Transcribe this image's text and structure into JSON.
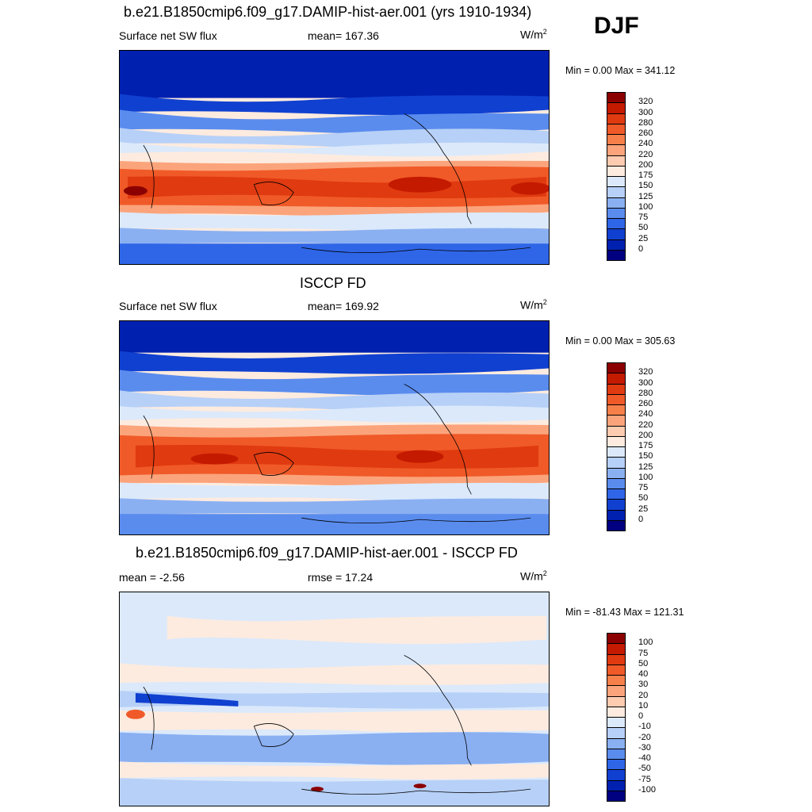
{
  "season": "DJF",
  "panels": [
    {
      "title": "b.e21.B1850cmip6.f09_g17.DAMIP-hist-aer.001 (yrs 1910-1934)",
      "left_label": "Surface net SW flux",
      "center_label": "mean= 167.36",
      "units_main": "W/m",
      "units_sup": "2",
      "minmax": "Min =   0.00 Max = 341.12",
      "kind": "field"
    },
    {
      "title": "ISCCP FD",
      "left_label": "Surface net SW flux",
      "center_label": "mean= 169.92",
      "units_main": "W/m",
      "units_sup": "2",
      "minmax": "Min =   0.00 Max = 305.63",
      "kind": "field"
    },
    {
      "title": "b.e21.B1850cmip6.f09_g17.DAMIP-hist-aer.001 - ISCCP FD",
      "left_label": "mean =  -2.56",
      "center_label": "rmse =  17.24",
      "units_main": "W/m",
      "units_sup": "2",
      "minmax": "Min = -81.43 Max = 121.31",
      "kind": "diff"
    }
  ],
  "colorbars": {
    "field": {
      "labels": [
        "320",
        "300",
        "280",
        "260",
        "240",
        "220",
        "200",
        "175",
        "150",
        "125",
        "100",
        "75",
        "50",
        "25",
        "0"
      ],
      "colors": [
        "#8b0000",
        "#c41a00",
        "#e03a10",
        "#f05a28",
        "#f7804a",
        "#fba47c",
        "#fdcbb0",
        "#fdebdf",
        "#dbe9fb",
        "#b7d0f7",
        "#8ab0f2",
        "#5a8cee",
        "#2f66e8",
        "#1040d0",
        "#0020b0",
        "#000080"
      ]
    },
    "diff": {
      "labels": [
        "100",
        "75",
        "50",
        "40",
        "30",
        "20",
        "10",
        "0",
        "-10",
        "-20",
        "-30",
        "-40",
        "-50",
        "-75",
        "-100"
      ],
      "colors": [
        "#8b0000",
        "#c41a00",
        "#e03a10",
        "#f05a28",
        "#f7804a",
        "#fba47c",
        "#fdcbb0",
        "#fdebdf",
        "#dbe9fb",
        "#b7d0f7",
        "#8ab0f2",
        "#5a8cee",
        "#2f66e8",
        "#1040d0",
        "#0020b0",
        "#000080"
      ]
    }
  },
  "chart_data": [
    {
      "type": "heatmap",
      "title": "b.e21.B1850cmip6.f09_g17.DAMIP-hist-aer.001 (yrs 1910-1934)",
      "variable": "Surface net SW flux",
      "mean": 167.36,
      "min": 0.0,
      "max": 341.12,
      "levels": [
        0,
        25,
        50,
        75,
        100,
        125,
        150,
        175,
        200,
        220,
        240,
        260,
        280,
        300,
        320
      ]
    },
    {
      "type": "heatmap",
      "title": "ISCCP FD",
      "variable": "Surface net SW flux",
      "mean": 169.92,
      "min": 0.0,
      "max": 305.63,
      "levels": [
        0,
        25,
        50,
        75,
        100,
        125,
        150,
        175,
        200,
        220,
        240,
        260,
        280,
        300,
        320
      ]
    },
    {
      "type": "heatmap",
      "title": "b.e21.B1850cmip6.f09_g17.DAMIP-hist-aer.001 - ISCCP FD",
      "mean": -2.56,
      "rmse": 17.24,
      "min": -81.43,
      "max": 121.31,
      "levels": [
        -100,
        -75,
        -50,
        -40,
        -30,
        -20,
        -10,
        0,
        10,
        20,
        30,
        40,
        50,
        75,
        100
      ]
    }
  ]
}
